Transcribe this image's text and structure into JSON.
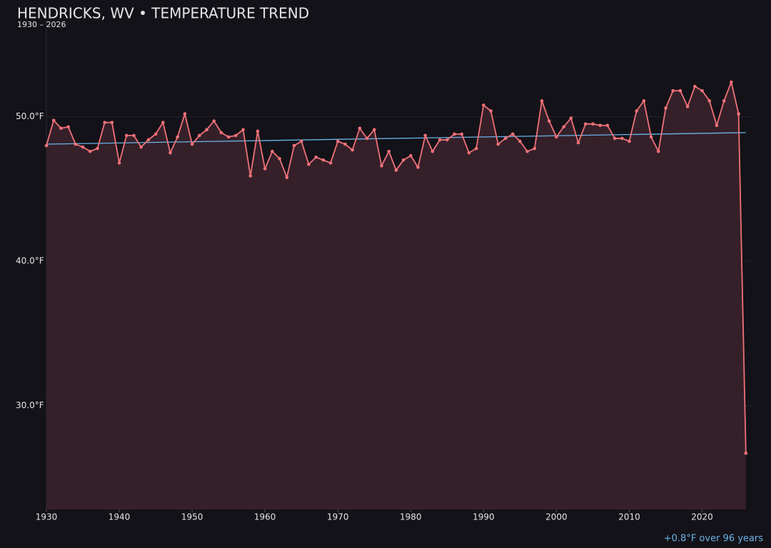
{
  "chart_data": {
    "type": "line",
    "title": "HENDRICKS, WV • TEMPERATURE TREND",
    "subtitle": "1930 – 2026",
    "annotation": "+0.8°F over 96 years",
    "x": [
      1930,
      1931,
      1932,
      1933,
      1934,
      1935,
      1936,
      1937,
      1938,
      1939,
      1940,
      1941,
      1942,
      1943,
      1944,
      1945,
      1946,
      1947,
      1948,
      1949,
      1950,
      1951,
      1952,
      1953,
      1954,
      1955,
      1956,
      1957,
      1958,
      1959,
      1960,
      1961,
      1962,
      1963,
      1964,
      1965,
      1966,
      1967,
      1968,
      1969,
      1970,
      1971,
      1972,
      1973,
      1974,
      1975,
      1976,
      1977,
      1978,
      1979,
      1980,
      1981,
      1982,
      1983,
      1984,
      1985,
      1986,
      1987,
      1988,
      1989,
      1990,
      1991,
      1992,
      1993,
      1994,
      1995,
      1996,
      1997,
      1998,
      1999,
      2000,
      2001,
      2002,
      2003,
      2004,
      2005,
      2006,
      2007,
      2008,
      2009,
      2010,
      2011,
      2012,
      2013,
      2014,
      2015,
      2016,
      2017,
      2018,
      2019,
      2020,
      2021,
      2022,
      2023,
      2024,
      2025,
      2026
    ],
    "series": [
      {
        "color": "#f07178",
        "area_color": "#35202a",
        "values": [
          48.0,
          49.75,
          49.2,
          49.3,
          48.1,
          47.9,
          47.6,
          47.8,
          49.6,
          49.6,
          46.8,
          48.7,
          48.7,
          47.9,
          48.4,
          48.8,
          49.6,
          47.5,
          48.6,
          50.2,
          48.1,
          48.7,
          49.1,
          49.7,
          48.9,
          48.6,
          48.7,
          49.1,
          45.9,
          49.0,
          46.4,
          47.6,
          47.1,
          45.8,
          48.0,
          48.3,
          46.7,
          47.2,
          47.0,
          46.8,
          48.3,
          48.1,
          47.7,
          49.2,
          48.5,
          49.1,
          46.6,
          47.6,
          46.3,
          47.0,
          47.3,
          46.5,
          48.7,
          47.6,
          48.4,
          48.4,
          48.8,
          48.8,
          47.5,
          47.8,
          50.8,
          50.4,
          48.1,
          48.5,
          48.8,
          48.3,
          47.6,
          47.8,
          51.1,
          49.7,
          48.6,
          49.3,
          49.9,
          48.2,
          49.5,
          49.5,
          49.4,
          49.4,
          48.5,
          48.5,
          48.3,
          50.4,
          51.1,
          48.6,
          47.6,
          50.6,
          51.8,
          51.8,
          50.7,
          52.1,
          51.8,
          51.1,
          49.4,
          51.1,
          52.4,
          50.2,
          26.7
        ]
      }
    ],
    "trend": {
      "x": [
        1930,
        2026
      ],
      "values": [
        48.1,
        48.9
      ],
      "color": "#6ab4e8"
    },
    "xlim": [
      1930,
      2027
    ],
    "ylim": [
      22.8,
      56.7
    ],
    "xticks": [
      1930,
      1940,
      1950,
      1960,
      1970,
      1980,
      1990,
      2000,
      2010,
      2020
    ],
    "yticks": [
      {
        "value": 30,
        "label": "30.0°F"
      },
      {
        "value": 40,
        "label": "40.0°F"
      },
      {
        "value": 50,
        "label": "50.0°F"
      }
    ],
    "grid": true
  }
}
